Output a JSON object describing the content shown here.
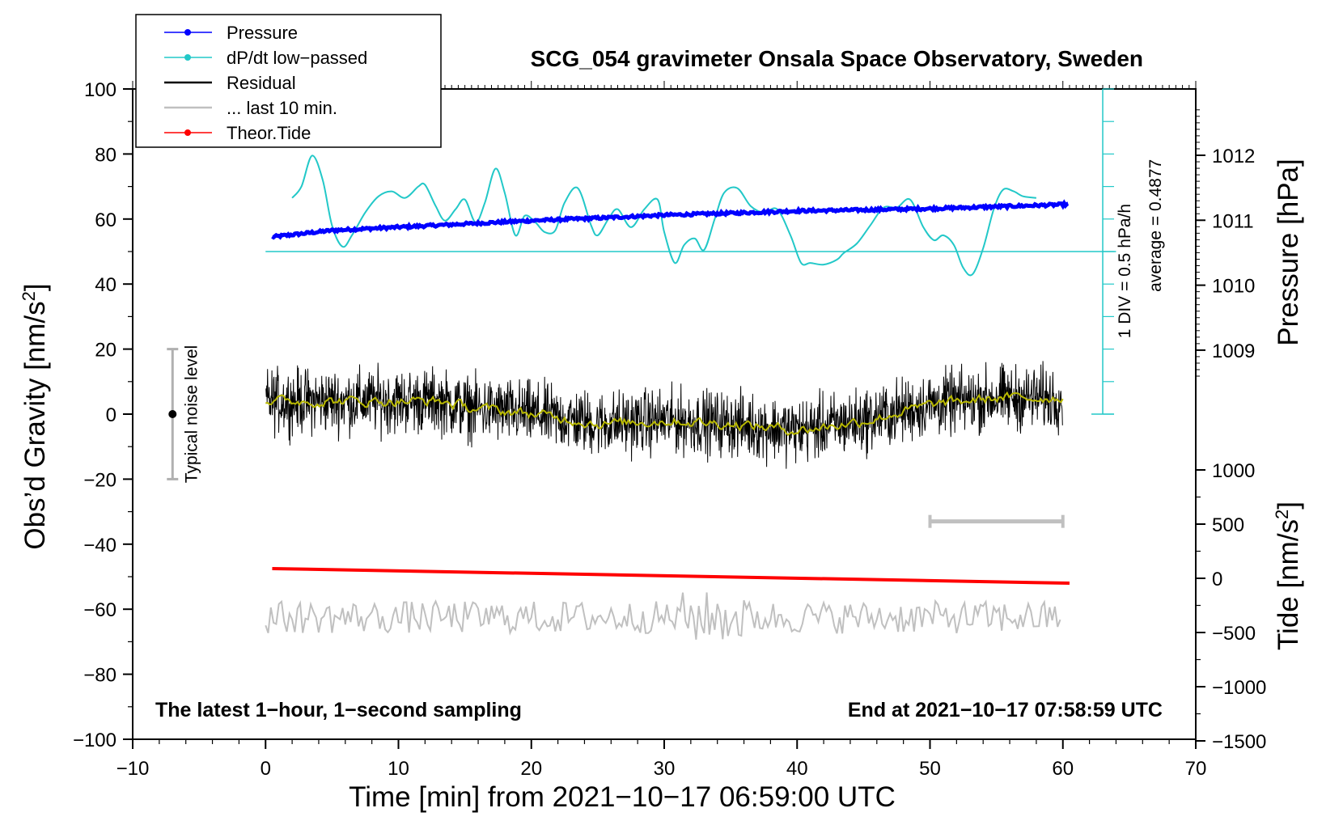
{
  "chart_data": {
    "type": "line",
    "title": "SCG_054 gravimeter Onsala Space Observatory, Sweden",
    "xlabel": "Time [min] from 2021−10−17 06:59:00 UTC",
    "ylabel_left": "Obs’d Gravity [nm/s",
    "ylabel_left_sup": "2",
    "ylabel_left_end": "]",
    "ylabel_right_pressure": "Pressure [hPa]",
    "ylabel_right_tide": "Tide [nm/s",
    "ylabel_right_tide_sup": "2",
    "ylabel_right_tide_end": "]",
    "xlim": [
      -10,
      70
    ],
    "ylim_left": [
      -100,
      100
    ],
    "pressure_range": [
      1008,
      1013
    ],
    "tide_range": [
      -1500,
      1500
    ],
    "x_ticks": [
      -10,
      0,
      10,
      20,
      30,
      40,
      50,
      60,
      70
    ],
    "x_tick_labels": [
      "−10",
      "0",
      "10",
      "20",
      "30",
      "40",
      "50",
      "60",
      "70"
    ],
    "y_ticks_left": [
      100,
      80,
      60,
      40,
      20,
      0,
      -20,
      -40,
      -60,
      -80,
      -100
    ],
    "y_tick_labels_left": [
      "100",
      "80",
      "60",
      "40",
      "20",
      "0",
      "−20",
      "−40",
      "−60",
      "−80",
      "−100"
    ],
    "pressure_ticks": [
      1012,
      1011,
      1010,
      1009
    ],
    "pressure_tick_labels": [
      "1012",
      "1011",
      "1010",
      "1009"
    ],
    "tide_ticks": [
      1000,
      500,
      0,
      -500,
      -1000,
      -1500
    ],
    "tide_tick_labels": [
      "1000",
      "500",
      "0",
      "−500",
      "−1000",
      "−1500"
    ],
    "legend": [
      {
        "label": "Pressure",
        "color": "#0000ff",
        "style": "line-dot"
      },
      {
        "label": "dP/dt low−passed",
        "color": "#22c8c8",
        "style": "line-dot"
      },
      {
        "label": "Residual",
        "color": "#000000",
        "style": "line"
      },
      {
        "label": "... last 10 min.",
        "color": "#c0c0c0",
        "style": "line"
      },
      {
        "label": "Theor.Tide",
        "color": "#ff0000",
        "style": "line-dot"
      }
    ],
    "noise_label": "Typical noise level",
    "noise_bar_range": [
      -20,
      20
    ],
    "noise_bar_x": -7,
    "dpdt_scale_text": "1 DIV = 0.5 hPa/h",
    "dpdt_average_text": "average = 0.4877",
    "dpdt_baseline_y": 50,
    "last10_bar": [
      50,
      60
    ],
    "last10_bar_y": -33,
    "note_left": "The latest 1−hour, 1−second sampling",
    "note_right": "End at 2021−10−17 07:58:59 UTC",
    "series": [
      {
        "name": "Pressure",
        "color": "#0000ff",
        "x": [
          0.5,
          5,
          10,
          15,
          20,
          25,
          30,
          35,
          40,
          45,
          50,
          55,
          60.5
        ],
        "y": [
          54.5,
          56.5,
          57.5,
          58.5,
          59.5,
          60.3,
          61.2,
          61.8,
          62.5,
          62.8,
          63.2,
          63.8,
          64.5
        ]
      },
      {
        "name": "dP/dt low−passed",
        "color": "#22c8c8",
        "x": [
          2,
          2.7,
          3.5,
          4.3,
          5,
          5.8,
          6.5,
          7.5,
          8.5,
          9.5,
          10.5,
          11.5,
          12,
          12.8,
          13.5,
          14.3,
          15,
          15.8,
          16.5,
          17.3,
          18,
          18.8,
          19.5,
          20.3,
          21,
          21.8,
          22.5,
          23.5,
          24.5,
          25,
          25.8,
          26.5,
          27.5,
          28.5,
          29.5,
          30,
          30.8,
          31.5,
          32.3,
          33,
          33.8,
          34.5,
          35.5,
          36.5,
          37.5,
          38.5,
          39.5,
          40.3,
          41,
          42,
          43,
          43.5,
          44.5,
          45.5,
          46.5,
          47.5,
          48.5,
          49.5,
          50.3,
          51,
          51.8,
          52.5,
          53.2,
          54,
          54.8,
          55.5,
          56.3,
          57,
          58
        ],
        "y": [
          66.5,
          70,
          79.5,
          72,
          58,
          51.5,
          55,
          62,
          67,
          68.5,
          66.5,
          70,
          70.5,
          64,
          59.5,
          63,
          66,
          59,
          65,
          75.5,
          68,
          55,
          61,
          59,
          56,
          56.5,
          65,
          69.5,
          58,
          55,
          60,
          63,
          57.5,
          63,
          66,
          56,
          46.5,
          52,
          54,
          50.5,
          60,
          68,
          69.5,
          64,
          62,
          63,
          55,
          46.5,
          46.5,
          46,
          47.5,
          49.5,
          52.5,
          58,
          63.5,
          63.5,
          66,
          57.5,
          53.5,
          55,
          52,
          45,
          43,
          51,
          63,
          69,
          68.5,
          67,
          66.5
        ]
      }
    ],
    "residual": {
      "name": "Residual",
      "color": "#000000",
      "smooth_color": "#b8b800",
      "x_start": 0,
      "x_end": 60,
      "baseline": [
        {
          "x": 0,
          "y": 4
        },
        {
          "x": 10,
          "y": 4
        },
        {
          "x": 13,
          "y": 4
        },
        {
          "x": 15,
          "y": 2
        },
        {
          "x": 20,
          "y": 0
        },
        {
          "x": 25,
          "y": -3
        },
        {
          "x": 30,
          "y": -2
        },
        {
          "x": 35,
          "y": -3
        },
        {
          "x": 40,
          "y": -5
        },
        {
          "x": 45,
          "y": -2
        },
        {
          "x": 50,
          "y": 3
        },
        {
          "x": 55,
          "y": 5
        },
        {
          "x": 60,
          "y": 5
        }
      ],
      "amplitude": 6
    },
    "last10": {
      "name": "... last 10 min.",
      "color": "#c0c0c0",
      "x_start": 0,
      "x_end": 60,
      "center": -62.5,
      "amplitude": 5
    },
    "tide": {
      "name": "Theor.Tide",
      "color": "#ff0000",
      "x": [
        0.5,
        60.5
      ],
      "y": [
        -47.5,
        -52
      ]
    }
  }
}
